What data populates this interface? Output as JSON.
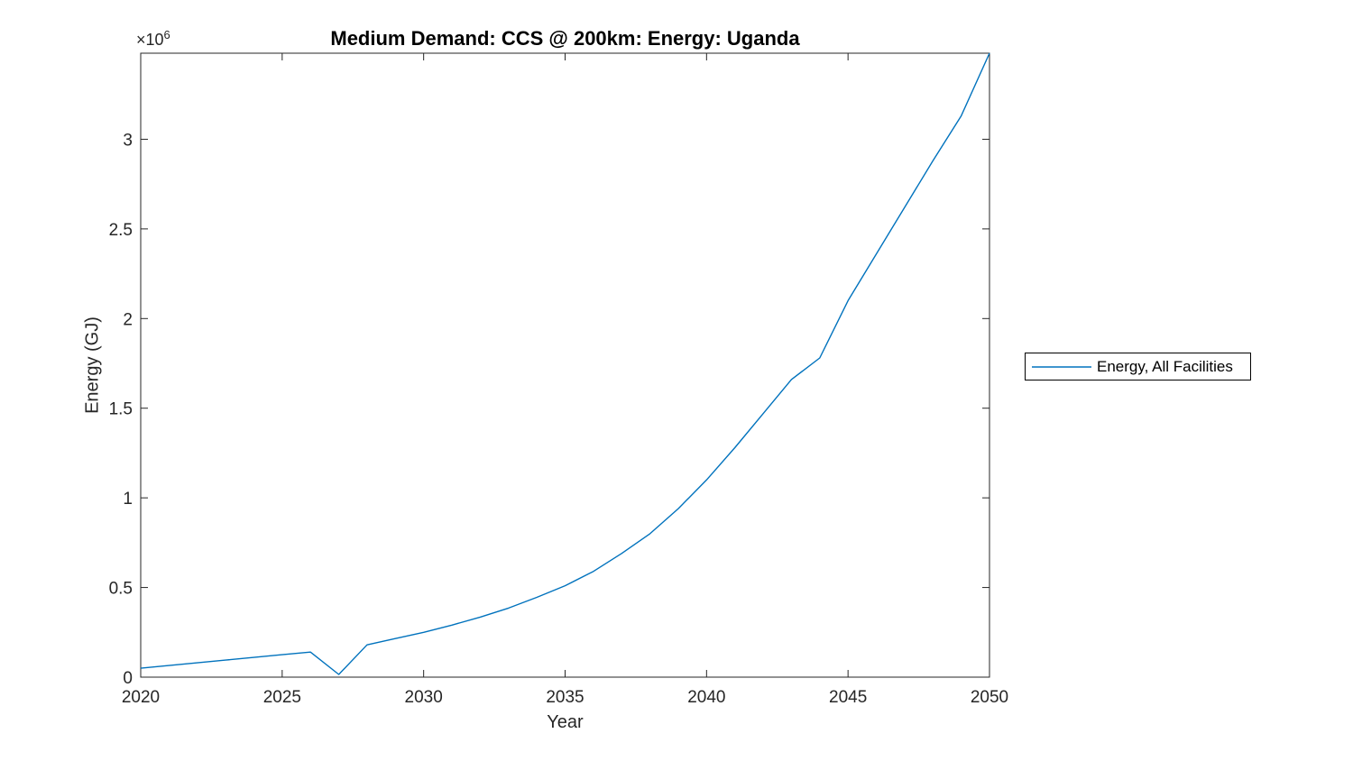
{
  "colors": {
    "line": "#0072BD",
    "axis": "#262626",
    "tick_label": "#262626",
    "title": "#000000",
    "background": "#ffffff",
    "legend_border": "#000000"
  },
  "chart_data": {
    "type": "line",
    "title": "Medium Demand: CCS @ 200km: Energy: Uganda",
    "xlabel": "Year",
    "ylabel": "Energy (GJ)",
    "y_axis_multiplier": {
      "base": "×10",
      "exponent": "6"
    },
    "xlim": [
      2020,
      2050
    ],
    "ylim_gj": [
      0,
      3480000
    ],
    "grid": false,
    "legend_position": "outside-right",
    "xticks": [
      {
        "value": 2020,
        "label": "2020"
      },
      {
        "value": 2025,
        "label": "2025"
      },
      {
        "value": 2030,
        "label": "2030"
      },
      {
        "value": 2035,
        "label": "2035"
      },
      {
        "value": 2040,
        "label": "2040"
      },
      {
        "value": 2045,
        "label": "2045"
      },
      {
        "value": 2050,
        "label": "2050"
      }
    ],
    "yticks": [
      {
        "value_gj": 0,
        "label": "0"
      },
      {
        "value_gj": 500000,
        "label": "0.5"
      },
      {
        "value_gj": 1000000,
        "label": "1"
      },
      {
        "value_gj": 1500000,
        "label": "1.5"
      },
      {
        "value_gj": 2000000,
        "label": "2"
      },
      {
        "value_gj": 2500000,
        "label": "2.5"
      },
      {
        "value_gj": 3000000,
        "label": "3"
      }
    ],
    "series": [
      {
        "name": "Energy, All Facilities",
        "color": "#0072BD",
        "x": [
          2020,
          2021,
          2022,
          2023,
          2024,
          2025,
          2026,
          2027,
          2028,
          2029,
          2030,
          2031,
          2032,
          2033,
          2034,
          2035,
          2036,
          2037,
          2038,
          2039,
          2040,
          2041,
          2042,
          2043,
          2044,
          2045,
          2046,
          2047,
          2048,
          2049,
          2050
        ],
        "y_gj": [
          50000,
          65000,
          80000,
          95000,
          110000,
          125000,
          140000,
          15000,
          180000,
          215000,
          250000,
          290000,
          335000,
          385000,
          445000,
          510000,
          590000,
          690000,
          800000,
          940000,
          1100000,
          1280000,
          1470000,
          1660000,
          1780000,
          2100000,
          2360000,
          2620000,
          2880000,
          3130000,
          3480000
        ]
      }
    ]
  },
  "legend": {
    "entries": [
      {
        "label": "Energy, All Facilities",
        "color": "#0072BD"
      }
    ]
  }
}
